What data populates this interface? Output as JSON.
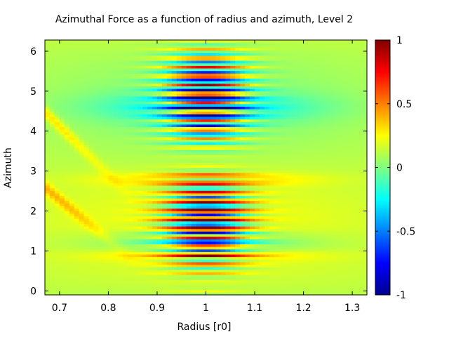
{
  "chart_data": {
    "type": "heatmap",
    "title": "Azimuthal Force as a function of radius and azimuth, Level 2",
    "xlabel": "Radius [r0]",
    "ylabel": "Azimuth",
    "xlim": [
      0.67,
      1.33
    ],
    "ylim": [
      -0.1,
      6.28
    ],
    "x_ticks": [
      "0.7",
      "0.8",
      "0.9",
      "1",
      "1.1",
      "1.2",
      "1.3"
    ],
    "x_tick_values": [
      0.7,
      0.8,
      0.9,
      1.0,
      1.1,
      1.2,
      1.3
    ],
    "y_ticks": [
      "0",
      "1",
      "2",
      "3",
      "4",
      "5",
      "6"
    ],
    "y_tick_values": [
      0,
      1,
      2,
      3,
      4,
      5,
      6
    ],
    "colorbar": {
      "colormap": "jet",
      "range": [
        -1,
        1
      ],
      "ticks": [
        "1",
        "0.5",
        "0",
        "-0.5",
        "-1"
      ],
      "tick_values": [
        1,
        0.5,
        0,
        -0.5,
        -1
      ]
    },
    "grid": false,
    "features": {
      "central_band_center_radius": 1.0,
      "central_band_half_width": 0.06,
      "negative_lobes_azimuth": [
        1.2,
        4.6
      ],
      "positive_streaks_azimuth": [
        0.9,
        2.8
      ]
    }
  }
}
